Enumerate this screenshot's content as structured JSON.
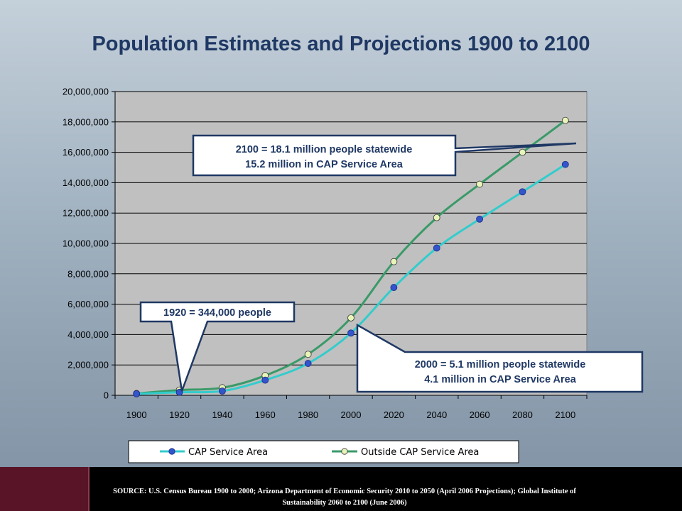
{
  "slide": {
    "title": "Population Estimates and Projections 1900 to 2100"
  },
  "callouts": {
    "y2100_line1": "2100 = 18.1 million people statewide",
    "y2100_line2": "15.2 million in CAP Service Area",
    "y1920_line1": "1920 = 344,000 people",
    "y2000_line1": "2000 = 5.1 million people statewide",
    "y2000_line2": "4.1 million in CAP Service Area"
  },
  "footer": {
    "source_line1": "SOURCE:   U.S. Census Bureau 1900 to 2000; Arizona Department of Economic Security 2010 to 2050 (April 2006 Projections); Global Institute of",
    "source_line2": "Sustainability 2060 to 2100 (June 2006)"
  },
  "colors": {
    "cap_line": "#33cccc",
    "cap_marker": "#3355cc",
    "outside_line": "#3a9a68",
    "outside_marker": "#e8f5b8",
    "title": "#1f3864",
    "plot_bg": "#c0c0c0",
    "footer_accent": "#5a1428"
  },
  "chart_data": {
    "type": "line",
    "title": "Population Estimates and Projections 1900 to 2100",
    "xlabel": "",
    "ylabel": "",
    "x": [
      "1900",
      "1920",
      "1940",
      "1960",
      "1980",
      "2000",
      "2020",
      "2040",
      "2060",
      "2080",
      "2100"
    ],
    "ylim": [
      0,
      20000000
    ],
    "yticks": [
      0,
      2000000,
      4000000,
      6000000,
      8000000,
      10000000,
      12000000,
      14000000,
      16000000,
      18000000,
      20000000
    ],
    "ytick_labels": [
      "0",
      "2,000,000",
      "4,000,000",
      "6,000,000",
      "8,000,000",
      "10,000,000",
      "12,000,000",
      "14,000,000",
      "16,000,000",
      "18,000,000",
      "20,000,000"
    ],
    "grid": true,
    "legend_position": "bottom",
    "series": [
      {
        "name": "CAP Service Area",
        "values": [
          100000,
          200000,
          280000,
          1000000,
          2100000,
          4100000,
          7100000,
          9700000,
          11600000,
          13400000,
          15200000
        ]
      },
      {
        "name": "Outside CAP Service Area",
        "values": [
          120000,
          344000,
          500000,
          1300000,
          2700000,
          5100000,
          8800000,
          11700000,
          13900000,
          16000000,
          18100000
        ]
      }
    ]
  }
}
